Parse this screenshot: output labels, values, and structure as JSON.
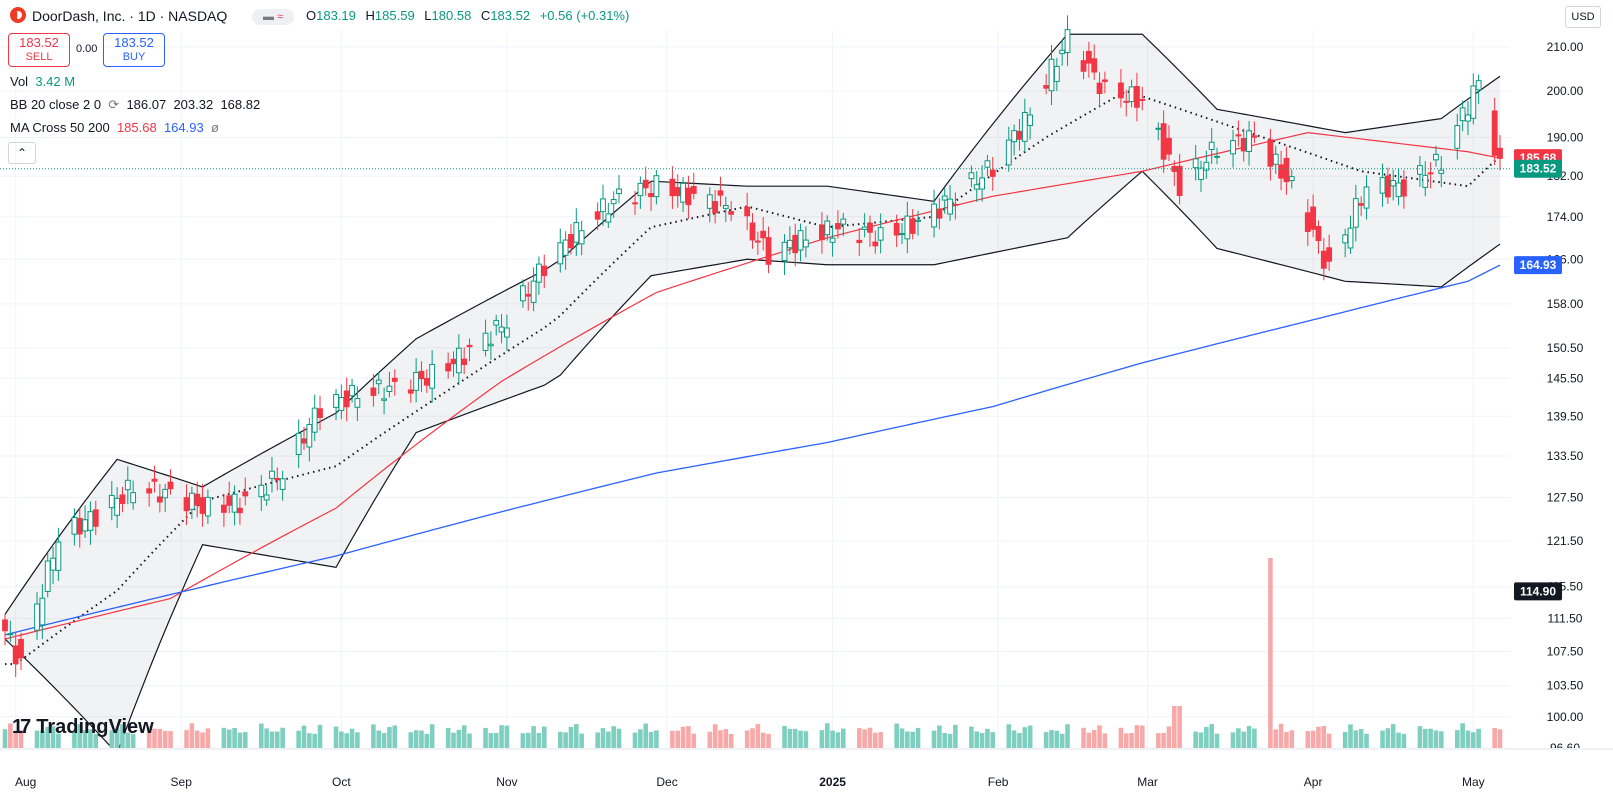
{
  "header": {
    "title": "DoorDash, Inc. · 1D · NASDAQ",
    "open_label": "O",
    "open": "183.19",
    "high_label": "H",
    "high": "185.59",
    "low_label": "L",
    "low": "180.58",
    "close_label": "C",
    "close": "183.52",
    "change": "+0.56 (+0.31%)",
    "currency": "USD"
  },
  "trade": {
    "sell_price": "183.52",
    "sell_label": "SELL",
    "spread": "0.00",
    "buy_price": "183.52",
    "buy_label": "BUY"
  },
  "indicators": {
    "vol_label": "Vol",
    "vol_value": "3.42 M",
    "bb_label": "BB 20 close 2 0",
    "bb_basis": "186.07",
    "bb_upper": "203.32",
    "bb_lower": "168.82",
    "ma_label": "MA Cross 50 200",
    "ma_fast": "185.68",
    "ma_slow": "164.93",
    "ma_extra": "ø"
  },
  "branding": {
    "name": "TradingView"
  },
  "colors": {
    "up": "#089981",
    "down": "#f23645",
    "ma50": "#f23645",
    "ma200": "#2962ff",
    "bb": "#131722",
    "vol_up": "#7fcfc0",
    "vol_down": "#f7a9a9"
  },
  "chart_data": {
    "type": "candlestick",
    "ylim": [
      96.6,
      214
    ],
    "y_ticks": [
      "210.00",
      "200.00",
      "190.00",
      "182.00",
      "174.00",
      "166.00",
      "158.00",
      "150.50",
      "145.50",
      "139.50",
      "133.50",
      "127.50",
      "121.50",
      "115.50",
      "111.50",
      "107.50",
      "103.50",
      "100.00",
      "96.60"
    ],
    "y_scale": "log",
    "price_labels": [
      {
        "value": "185.68",
        "color": "#f23645"
      },
      {
        "value": "183.52",
        "color": "#089981"
      },
      {
        "value": "164.93",
        "color": "#2962ff"
      },
      {
        "value": "114.90",
        "color": "#131722"
      }
    ],
    "x_ticks": [
      {
        "label": "Aug",
        "date": "2024-08-01"
      },
      {
        "label": "Sep",
        "date": "2024-09-01"
      },
      {
        "label": "Oct",
        "date": "2024-10-01"
      },
      {
        "label": "Nov",
        "date": "2024-11-01"
      },
      {
        "label": "Dec",
        "date": "2024-12-01"
      },
      {
        "label": "2025",
        "date": "2025-01-01"
      },
      {
        "label": "Feb",
        "date": "2025-02-01"
      },
      {
        "label": "Mar",
        "date": "2025-03-01"
      },
      {
        "label": "Apr",
        "date": "2025-04-01"
      },
      {
        "label": "May",
        "date": "2025-05-01"
      }
    ],
    "x_range": [
      "2024-07-30",
      "2025-05-06"
    ],
    "series": [
      {
        "name": "price",
        "close_points": [
          [
            "2024-07-30",
            110
          ],
          [
            "2024-08-02",
            106
          ],
          [
            "2024-08-05",
            113
          ],
          [
            "2024-08-09",
            122
          ],
          [
            "2024-08-16",
            125
          ],
          [
            "2024-08-23",
            129
          ],
          [
            "2024-08-30",
            128
          ],
          [
            "2024-09-06",
            126
          ],
          [
            "2024-09-13",
            127
          ],
          [
            "2024-09-20",
            131
          ],
          [
            "2024-09-27",
            141
          ],
          [
            "2024-10-04",
            143
          ],
          [
            "2024-10-11",
            144
          ],
          [
            "2024-10-18",
            146
          ],
          [
            "2024-10-25",
            150
          ],
          [
            "2024-11-01",
            155
          ],
          [
            "2024-11-08",
            165
          ],
          [
            "2024-11-15",
            172
          ],
          [
            "2024-11-22",
            178
          ],
          [
            "2024-11-29",
            180
          ],
          [
            "2024-12-06",
            178
          ],
          [
            "2024-12-13",
            176
          ],
          [
            "2024-12-20",
            167
          ],
          [
            "2024-12-27",
            170
          ],
          [
            "2025-01-03",
            172
          ],
          [
            "2025-01-10",
            170
          ],
          [
            "2025-01-17",
            173
          ],
          [
            "2025-01-24",
            178
          ],
          [
            "2025-01-31",
            184
          ],
          [
            "2025-02-07",
            195
          ],
          [
            "2025-02-14",
            212
          ],
          [
            "2025-02-21",
            200
          ],
          [
            "2025-02-28",
            198
          ],
          [
            "2025-03-07",
            180
          ],
          [
            "2025-03-14",
            188
          ],
          [
            "2025-03-21",
            190
          ],
          [
            "2025-03-28",
            180
          ],
          [
            "2025-04-04",
            164
          ],
          [
            "2025-04-11",
            180
          ],
          [
            "2025-04-18",
            180
          ],
          [
            "2025-04-25",
            185
          ],
          [
            "2025-05-02",
            202
          ],
          [
            "2025-05-06",
            183.5
          ]
        ]
      },
      {
        "name": "MA 50",
        "points": [
          [
            "2024-07-30",
            109
          ],
          [
            "2024-08-30",
            114
          ],
          [
            "2024-09-30",
            126
          ],
          [
            "2024-10-31",
            145
          ],
          [
            "2024-11-29",
            160
          ],
          [
            "2024-12-31",
            170
          ],
          [
            "2025-01-31",
            178
          ],
          [
            "2025-02-28",
            183
          ],
          [
            "2025-03-31",
            191
          ],
          [
            "2025-04-30",
            187
          ],
          [
            "2025-05-06",
            185.68
          ]
        ]
      },
      {
        "name": "MA 200",
        "points": [
          [
            "2024-07-30",
            109.5
          ],
          [
            "2024-08-30",
            114.5
          ],
          [
            "2024-09-30",
            119.5
          ],
          [
            "2024-10-31",
            125.5
          ],
          [
            "2024-11-29",
            131
          ],
          [
            "2024-12-31",
            135.5
          ],
          [
            "2025-01-31",
            141
          ],
          [
            "2025-02-28",
            148
          ],
          [
            "2025-03-31",
            155
          ],
          [
            "2025-04-30",
            162
          ],
          [
            "2025-05-06",
            164.93
          ]
        ]
      },
      {
        "name": "BB basis",
        "points": [
          [
            "2024-08-01",
            106
          ],
          [
            "2024-08-20",
            115
          ],
          [
            "2024-09-05",
            127
          ],
          [
            "2024-09-30",
            132
          ],
          [
            "2024-10-20",
            143
          ],
          [
            "2024-11-10",
            155
          ],
          [
            "2024-11-28",
            172
          ],
          [
            "2024-12-16",
            176
          ],
          [
            "2024-12-31",
            172
          ],
          [
            "2025-01-20",
            174
          ],
          [
            "2025-02-10",
            190
          ],
          [
            "2025-02-25",
            200
          ],
          [
            "2025-03-20",
            191
          ],
          [
            "2025-04-10",
            183
          ],
          [
            "2025-04-30",
            180
          ],
          [
            "2025-05-06",
            186.07
          ]
        ]
      },
      {
        "name": "BB upper",
        "points": [
          [
            "2024-07-30",
            112
          ],
          [
            "2024-08-20",
            133
          ],
          [
            "2024-09-05",
            129
          ],
          [
            "2024-09-30",
            140
          ],
          [
            "2024-10-15",
            152
          ],
          [
            "2024-11-10",
            165
          ],
          [
            "2024-11-28",
            181
          ],
          [
            "2024-12-16",
            180
          ],
          [
            "2024-12-31",
            180
          ],
          [
            "2025-01-20",
            177
          ],
          [
            "2025-02-14",
            213
          ],
          [
            "2025-02-28",
            213
          ],
          [
            "2025-03-14",
            196
          ],
          [
            "2025-04-07",
            191
          ],
          [
            "2025-04-25",
            194
          ],
          [
            "2025-05-06",
            203.32
          ]
        ]
      },
      {
        "name": "BB lower",
        "points": [
          [
            "2024-07-30",
            109
          ],
          [
            "2024-08-20",
            96
          ],
          [
            "2024-09-05",
            121
          ],
          [
            "2024-09-30",
            118
          ],
          [
            "2024-10-15",
            137
          ],
          [
            "2024-11-10",
            145
          ],
          [
            "2024-11-28",
            163
          ],
          [
            "2024-12-16",
            166
          ],
          [
            "2024-12-31",
            165
          ],
          [
            "2025-01-20",
            165
          ],
          [
            "2025-02-14",
            170
          ],
          [
            "2025-02-28",
            183
          ],
          [
            "2025-03-14",
            168
          ],
          [
            "2025-04-07",
            162
          ],
          [
            "2025-04-25",
            161
          ],
          [
            "2025-05-06",
            168.82
          ]
        ]
      }
    ],
    "volume_spike": {
      "date": "2025-03-24",
      "label": "114.90"
    }
  }
}
